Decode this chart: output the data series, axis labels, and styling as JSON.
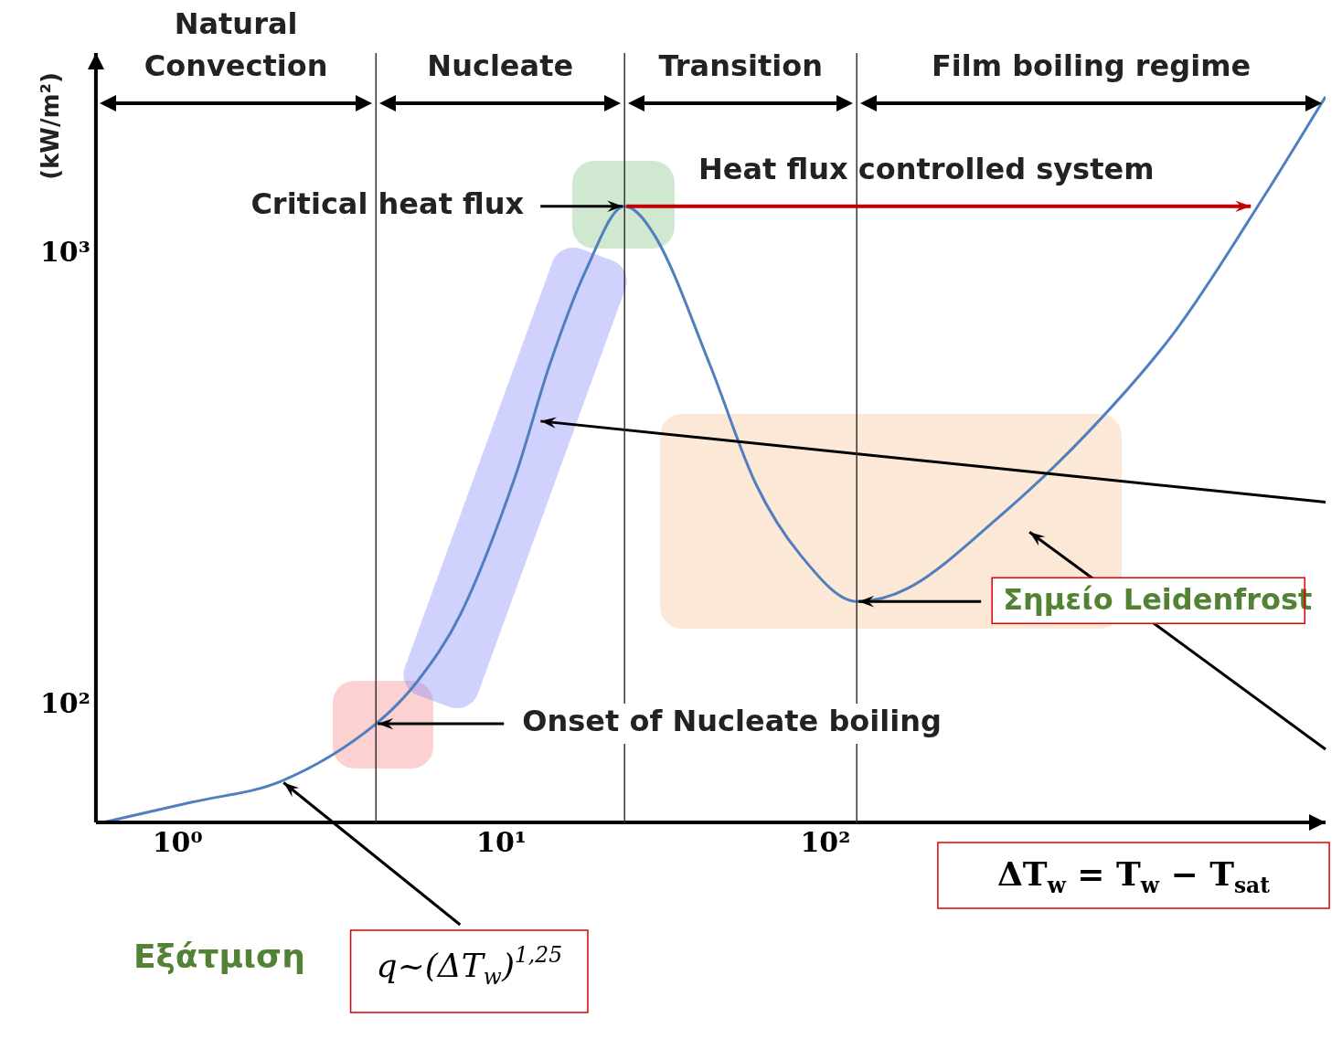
{
  "chart_data": {
    "type": "line",
    "xlabel": "ΔT$_{w}$ = T$_{w}$ − T$_{sat}$",
    "ylabel": "(kW/m²)",
    "log": "xy",
    "grid": false,
    "legend": false,
    "marker": "none",
    "line_style": "solid",
    "xlim": [
      0.56,
      3500
    ],
    "ylim": [
      55,
      2800
    ],
    "xticks": [
      {
        "value": 1,
        "label": "10⁰"
      },
      {
        "value": 10,
        "label": "10¹"
      },
      {
        "value": 100,
        "label": "10²"
      }
    ],
    "yticks": [
      {
        "value": 100,
        "label": "10²"
      },
      {
        "value": 1000,
        "label": "10³"
      }
    ],
    "series": [
      {
        "color": "#4f7fbf",
        "x": [
          0.59,
          1.11,
          2.1,
          4.1,
          5.5,
          7.5,
          11,
          14.1,
          18.2,
          24,
          30,
          44,
          61,
          84,
          125,
          180,
          340,
          640,
          1200,
          2280,
          3500
        ],
        "values": [
          55,
          61,
          68,
          91,
          113,
          160,
          320,
          570,
          920,
          1280,
          1090,
          570,
          310,
          215,
          170,
          182,
          260,
          400,
          675,
          1360,
          2240
        ]
      }
    ],
    "ref_lines": [
      {
        "axis": "x",
        "value": 4.1,
        "color": "#333333"
      },
      {
        "axis": "x",
        "value": 24,
        "color": "#333333"
      },
      {
        "axis": "x",
        "value": 125,
        "color": "#333333"
      }
    ],
    "annotations": [
      "Natural Convection",
      "Nucleate",
      "Transition",
      "Film boiling regime",
      {
        "text": "Critical heat flux",
        "x": 24,
        "y": 1280
      },
      {
        "text": "Heat flux controlled system",
        "x": 24,
        "y": 1280
      },
      {
        "text": "Onset of Nucleate boiling",
        "x": 4.1,
        "y": 91
      },
      {
        "text": "Σημείο Leidenfrost",
        "x": 125,
        "y": 170
      },
      "Εξάτμιση",
      {
        "text": "q~(ΔT$_{w}$)$^{1,25}$",
        "x": 2.1,
        "y": 68
      }
    ]
  }
}
